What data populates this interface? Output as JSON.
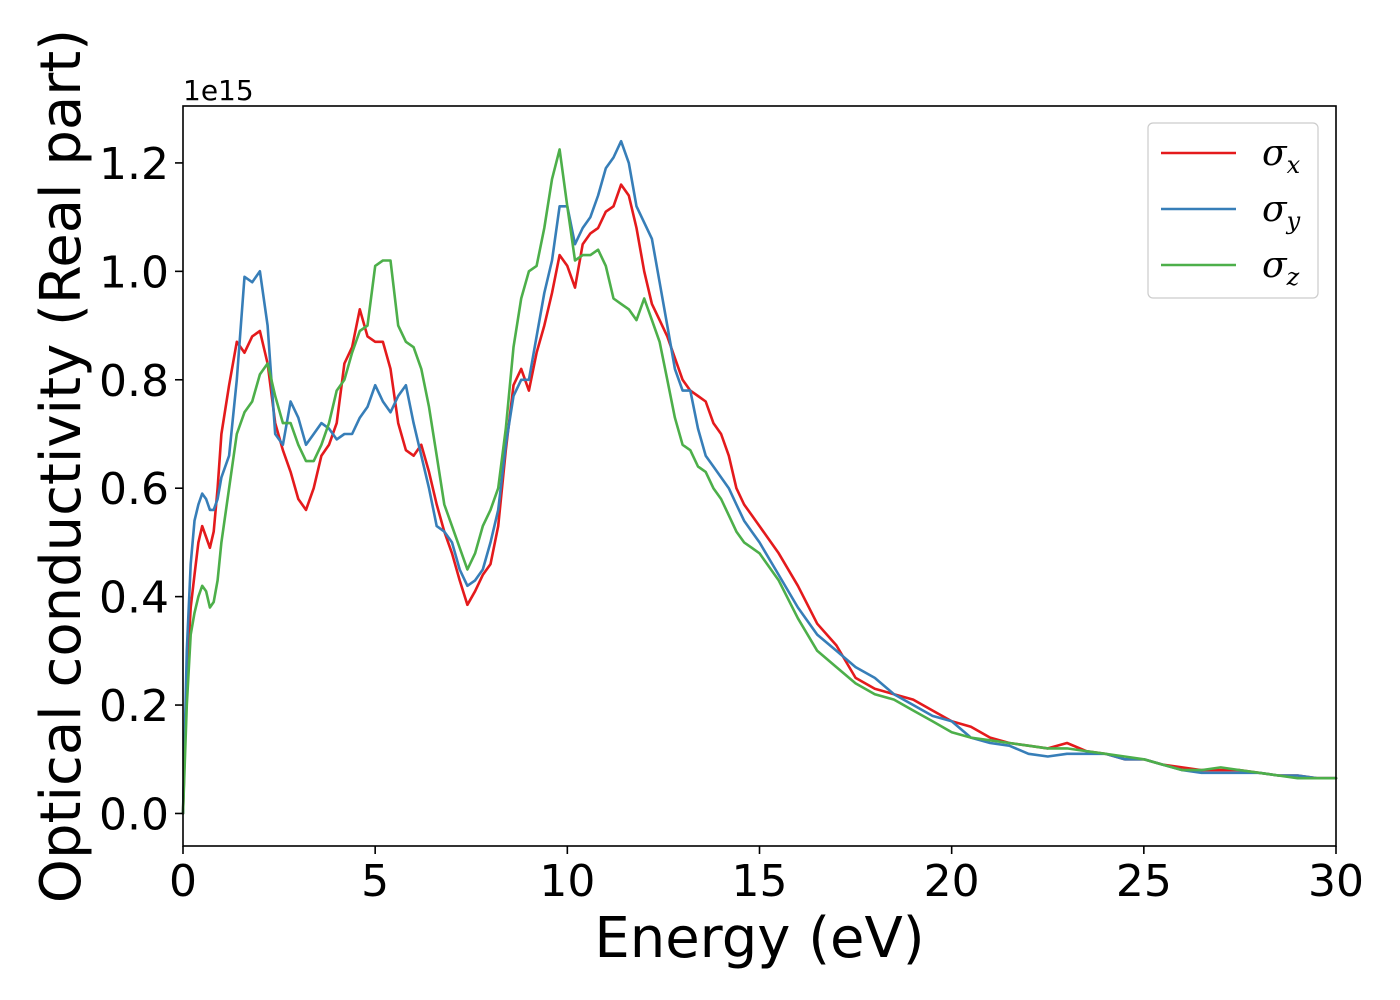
{
  "chart_data": {
    "type": "line",
    "xlabel": "Energy (eV)",
    "ylabel": "Optical conductivity (Real part)",
    "y_offset_label": "1e15",
    "xlim": [
      0,
      30
    ],
    "ylim": [
      -0.06,
      1.305
    ],
    "x_ticks": [
      0,
      5,
      10,
      15,
      20,
      25,
      30
    ],
    "x_tick_labels": [
      "0",
      "5",
      "10",
      "15",
      "20",
      "25",
      "30"
    ],
    "y_ticks": [
      0.0,
      0.2,
      0.4,
      0.6,
      0.8,
      1.0,
      1.2
    ],
    "y_tick_labels": [
      "0.0",
      "0.2",
      "0.4",
      "0.6",
      "0.8",
      "1.0",
      "1.2"
    ],
    "grid": false,
    "legend_position": "top-right",
    "series": [
      {
        "name": "σx",
        "legend_base": "σ",
        "legend_sub": "x",
        "color": "#e41a1c",
        "x": [
          0,
          0.1,
          0.2,
          0.3,
          0.4,
          0.5,
          0.6,
          0.7,
          0.8,
          0.9,
          1.0,
          1.2,
          1.4,
          1.6,
          1.8,
          2.0,
          2.2,
          2.4,
          2.6,
          2.8,
          3.0,
          3.2,
          3.4,
          3.6,
          3.8,
          4.0,
          4.2,
          4.4,
          4.6,
          4.8,
          5.0,
          5.2,
          5.4,
          5.6,
          5.8,
          6.0,
          6.2,
          6.4,
          6.6,
          6.8,
          7.0,
          7.2,
          7.4,
          7.6,
          7.8,
          8.0,
          8.2,
          8.4,
          8.6,
          8.8,
          9.0,
          9.2,
          9.4,
          9.6,
          9.8,
          10.0,
          10.2,
          10.4,
          10.6,
          10.8,
          11.0,
          11.2,
          11.4,
          11.6,
          11.8,
          12.0,
          12.2,
          12.4,
          12.6,
          12.8,
          13.0,
          13.2,
          13.4,
          13.6,
          13.8,
          14.0,
          14.2,
          14.4,
          14.6,
          14.8,
          15.0,
          15.5,
          16.0,
          16.5,
          17.0,
          17.5,
          18.0,
          18.5,
          19.0,
          19.5,
          20.0,
          20.5,
          21.0,
          21.5,
          22.0,
          22.5,
          23.0,
          23.5,
          24.0,
          24.5,
          25.0,
          25.5,
          26.0,
          26.5,
          27.0,
          27.5,
          28.0,
          28.5,
          29.0,
          29.5,
          30.0
        ],
        "values": [
          0.0,
          0.25,
          0.38,
          0.44,
          0.5,
          0.53,
          0.51,
          0.49,
          0.52,
          0.6,
          0.7,
          0.79,
          0.87,
          0.85,
          0.88,
          0.89,
          0.83,
          0.72,
          0.67,
          0.63,
          0.58,
          0.56,
          0.6,
          0.66,
          0.68,
          0.72,
          0.83,
          0.86,
          0.93,
          0.88,
          0.87,
          0.87,
          0.82,
          0.72,
          0.67,
          0.66,
          0.68,
          0.63,
          0.57,
          0.52,
          0.48,
          0.43,
          0.385,
          0.41,
          0.44,
          0.46,
          0.53,
          0.67,
          0.79,
          0.82,
          0.78,
          0.85,
          0.9,
          0.96,
          1.03,
          1.01,
          0.97,
          1.05,
          1.07,
          1.08,
          1.11,
          1.12,
          1.16,
          1.14,
          1.08,
          1.0,
          0.94,
          0.91,
          0.88,
          0.84,
          0.8,
          0.78,
          0.77,
          0.76,
          0.72,
          0.7,
          0.66,
          0.6,
          0.57,
          0.55,
          0.53,
          0.48,
          0.42,
          0.35,
          0.31,
          0.25,
          0.23,
          0.22,
          0.21,
          0.19,
          0.17,
          0.16,
          0.14,
          0.13,
          0.125,
          0.12,
          0.13,
          0.115,
          0.11,
          0.1,
          0.1,
          0.09,
          0.085,
          0.08,
          0.08,
          0.08,
          0.075,
          0.07,
          0.07,
          0.065,
          0.065
        ]
      },
      {
        "name": "σy",
        "legend_base": "σ",
        "legend_sub": "y",
        "color": "#377eb8",
        "x": [
          0,
          0.1,
          0.2,
          0.3,
          0.4,
          0.5,
          0.6,
          0.7,
          0.8,
          0.9,
          1.0,
          1.2,
          1.4,
          1.6,
          1.8,
          2.0,
          2.2,
          2.4,
          2.6,
          2.8,
          3.0,
          3.2,
          3.4,
          3.6,
          3.8,
          4.0,
          4.2,
          4.4,
          4.6,
          4.8,
          5.0,
          5.2,
          5.4,
          5.6,
          5.8,
          6.0,
          6.2,
          6.4,
          6.6,
          6.8,
          7.0,
          7.2,
          7.4,
          7.6,
          7.8,
          8.0,
          8.2,
          8.4,
          8.6,
          8.8,
          9.0,
          9.2,
          9.4,
          9.6,
          9.8,
          10.0,
          10.2,
          10.4,
          10.6,
          10.8,
          11.0,
          11.2,
          11.4,
          11.6,
          11.8,
          12.0,
          12.2,
          12.4,
          12.6,
          12.8,
          13.0,
          13.2,
          13.4,
          13.6,
          13.8,
          14.0,
          14.2,
          14.4,
          14.6,
          14.8,
          15.0,
          15.5,
          16.0,
          16.5,
          17.0,
          17.5,
          18.0,
          18.5,
          19.0,
          19.5,
          20.0,
          20.5,
          21.0,
          21.5,
          22.0,
          22.5,
          23.0,
          23.5,
          24.0,
          24.5,
          25.0,
          25.5,
          26.0,
          26.5,
          27.0,
          27.5,
          28.0,
          28.5,
          29.0,
          29.5,
          30.0
        ],
        "values": [
          0.0,
          0.3,
          0.46,
          0.54,
          0.57,
          0.59,
          0.58,
          0.56,
          0.56,
          0.58,
          0.62,
          0.66,
          0.8,
          0.99,
          0.98,
          1.0,
          0.9,
          0.7,
          0.68,
          0.76,
          0.73,
          0.68,
          0.7,
          0.72,
          0.71,
          0.69,
          0.7,
          0.7,
          0.73,
          0.75,
          0.79,
          0.76,
          0.74,
          0.77,
          0.79,
          0.72,
          0.66,
          0.6,
          0.53,
          0.52,
          0.5,
          0.45,
          0.42,
          0.43,
          0.45,
          0.5,
          0.56,
          0.68,
          0.77,
          0.8,
          0.8,
          0.88,
          0.96,
          1.02,
          1.12,
          1.12,
          1.05,
          1.08,
          1.1,
          1.14,
          1.19,
          1.21,
          1.24,
          1.2,
          1.12,
          1.09,
          1.06,
          0.98,
          0.9,
          0.82,
          0.78,
          0.78,
          0.71,
          0.66,
          0.64,
          0.62,
          0.6,
          0.57,
          0.54,
          0.52,
          0.5,
          0.44,
          0.38,
          0.33,
          0.3,
          0.27,
          0.25,
          0.22,
          0.2,
          0.18,
          0.17,
          0.14,
          0.13,
          0.125,
          0.11,
          0.105,
          0.11,
          0.11,
          0.11,
          0.1,
          0.1,
          0.09,
          0.08,
          0.075,
          0.075,
          0.075,
          0.075,
          0.07,
          0.07,
          0.065,
          0.065
        ]
      },
      {
        "name": "σz",
        "legend_base": "σ",
        "legend_sub": "z",
        "color": "#4daf4a",
        "x": [
          0,
          0.1,
          0.2,
          0.3,
          0.4,
          0.5,
          0.6,
          0.7,
          0.8,
          0.9,
          1.0,
          1.2,
          1.4,
          1.6,
          1.8,
          2.0,
          2.2,
          2.4,
          2.6,
          2.8,
          3.0,
          3.2,
          3.4,
          3.6,
          3.8,
          4.0,
          4.2,
          4.4,
          4.6,
          4.8,
          5.0,
          5.2,
          5.4,
          5.6,
          5.8,
          6.0,
          6.2,
          6.4,
          6.6,
          6.8,
          7.0,
          7.2,
          7.4,
          7.6,
          7.8,
          8.0,
          8.2,
          8.4,
          8.6,
          8.8,
          9.0,
          9.2,
          9.4,
          9.6,
          9.8,
          10.0,
          10.2,
          10.4,
          10.6,
          10.8,
          11.0,
          11.2,
          11.4,
          11.6,
          11.8,
          12.0,
          12.2,
          12.4,
          12.6,
          12.8,
          13.0,
          13.2,
          13.4,
          13.6,
          13.8,
          14.0,
          14.2,
          14.4,
          14.6,
          14.8,
          15.0,
          15.5,
          16.0,
          16.5,
          17.0,
          17.5,
          18.0,
          18.5,
          19.0,
          19.5,
          20.0,
          20.5,
          21.0,
          21.5,
          22.0,
          22.5,
          23.0,
          23.5,
          24.0,
          24.5,
          25.0,
          25.5,
          26.0,
          26.5,
          27.0,
          27.5,
          28.0,
          28.5,
          29.0,
          29.5,
          30.0
        ],
        "values": [
          0.0,
          0.2,
          0.33,
          0.37,
          0.4,
          0.42,
          0.41,
          0.38,
          0.39,
          0.43,
          0.5,
          0.6,
          0.7,
          0.74,
          0.76,
          0.81,
          0.83,
          0.77,
          0.72,
          0.72,
          0.68,
          0.65,
          0.65,
          0.68,
          0.72,
          0.78,
          0.8,
          0.85,
          0.89,
          0.9,
          1.01,
          1.02,
          1.02,
          0.9,
          0.87,
          0.86,
          0.82,
          0.75,
          0.66,
          0.57,
          0.53,
          0.49,
          0.45,
          0.48,
          0.53,
          0.56,
          0.6,
          0.71,
          0.86,
          0.95,
          1.0,
          1.01,
          1.08,
          1.17,
          1.225,
          1.12,
          1.02,
          1.03,
          1.03,
          1.04,
          1.01,
          0.95,
          0.94,
          0.93,
          0.91,
          0.95,
          0.91,
          0.87,
          0.8,
          0.73,
          0.68,
          0.67,
          0.64,
          0.63,
          0.6,
          0.58,
          0.55,
          0.52,
          0.5,
          0.49,
          0.48,
          0.43,
          0.36,
          0.3,
          0.27,
          0.24,
          0.22,
          0.21,
          0.19,
          0.17,
          0.15,
          0.14,
          0.135,
          0.13,
          0.125,
          0.12,
          0.12,
          0.115,
          0.11,
          0.105,
          0.1,
          0.09,
          0.08,
          0.08,
          0.085,
          0.08,
          0.075,
          0.07,
          0.065,
          0.065,
          0.065
        ]
      }
    ]
  }
}
